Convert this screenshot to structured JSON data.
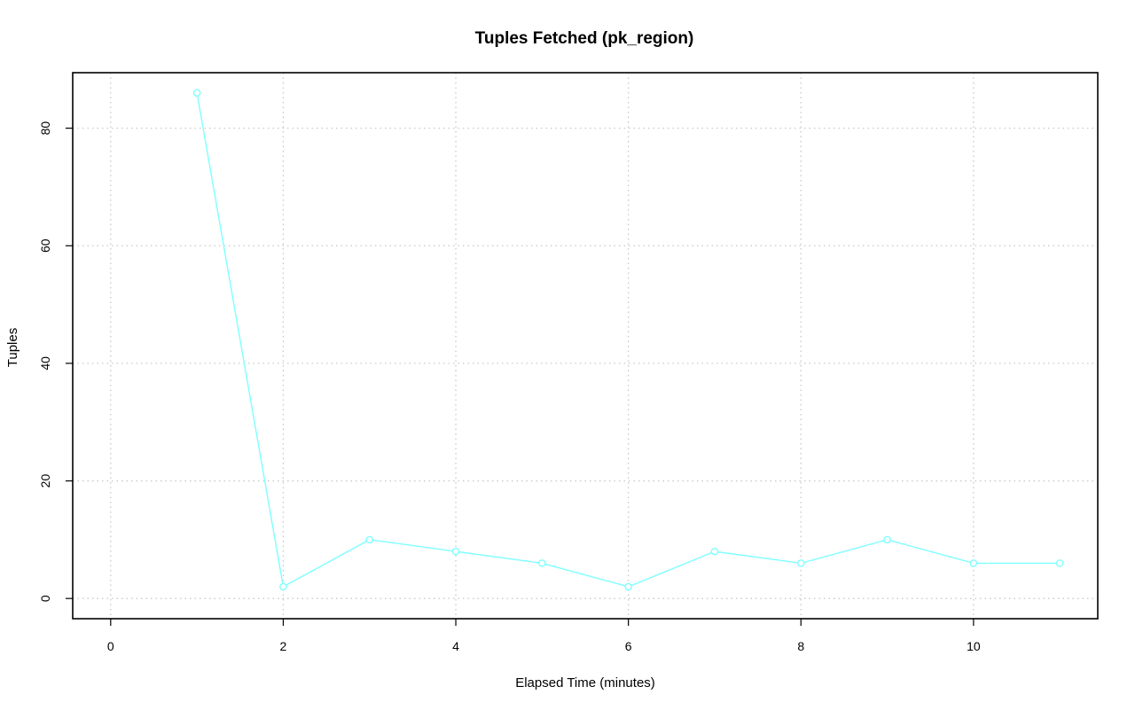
{
  "chart_data": {
    "type": "line",
    "title": "Tuples Fetched (pk_region)",
    "xlabel": "Elapsed Time (minutes)",
    "ylabel": "Tuples",
    "xlim": [
      -0.44,
      11.44
    ],
    "ylim": [
      -3.44,
      89.44
    ],
    "xticks": [
      0,
      2,
      4,
      6,
      8,
      10
    ],
    "yticks": [
      0,
      20,
      40,
      60,
      80
    ],
    "grid": true,
    "color": "#7fffff",
    "series": [
      {
        "x": [
          1,
          2,
          3,
          4,
          5,
          6,
          7,
          8,
          9,
          10,
          11
        ],
        "y": [
          86,
          2,
          10,
          8,
          6,
          2,
          8,
          6,
          10,
          6,
          6
        ]
      }
    ]
  }
}
